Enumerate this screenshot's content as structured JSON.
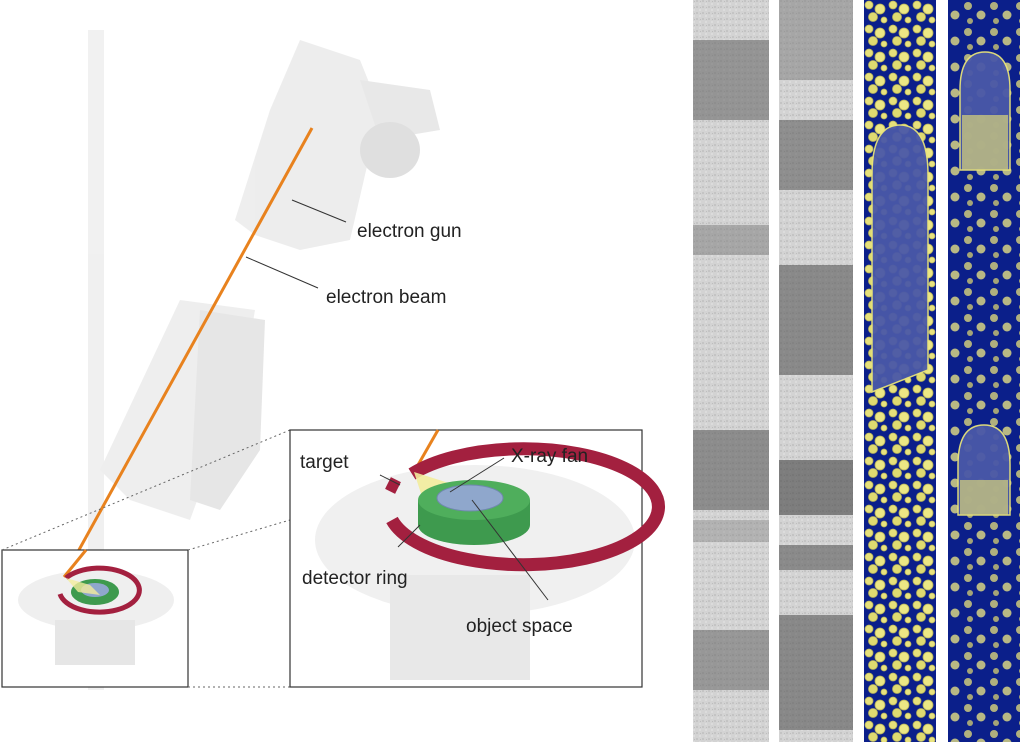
{
  "labels": {
    "electron_gun": "electron gun",
    "electron_beam": "electron beam",
    "target": "target",
    "xray_fan": "X-ray fan",
    "detector_ring": "detector ring",
    "object_space": "object space"
  },
  "colors": {
    "beam": "#e8821e",
    "target_ring": "#a3203f",
    "detector": "#3e9a4e",
    "object": "#8fa7cc",
    "xray_fan": "#f2ec9c",
    "ct_background": "#0b1f8a",
    "bubble_yellow": "#e8e37a",
    "grey_strip": "#cfcfcf"
  },
  "panels": {
    "grey_ct_strips": 2,
    "colored_3d_strips": 2
  }
}
